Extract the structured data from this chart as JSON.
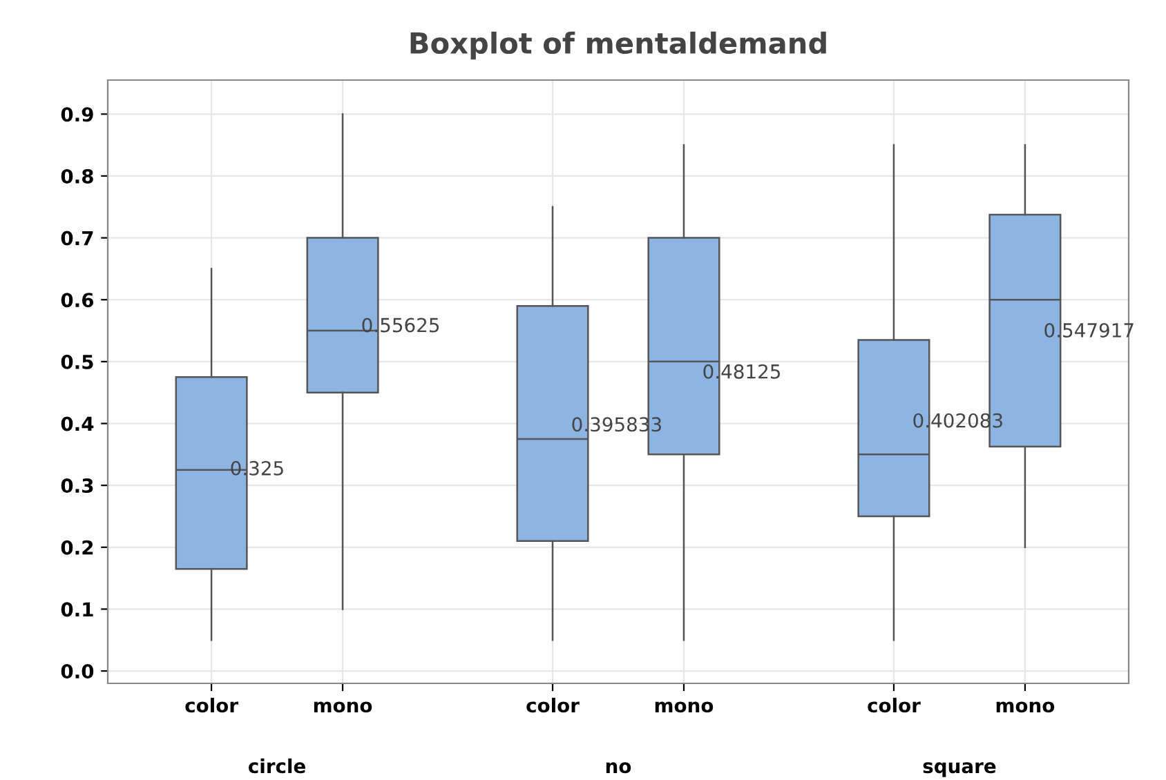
{
  "chart_data": {
    "type": "box",
    "title": "Boxplot of mentaldemand",
    "categories": [
      "color",
      "mono",
      "color",
      "mono",
      "color",
      "mono"
    ],
    "annotations": [
      "circle",
      "no",
      "square"
    ],
    "boxes": [
      {
        "low": 0.05,
        "q1": 0.165,
        "median": 0.325,
        "q3": 0.475,
        "high": 0.65
      },
      {
        "low": 0.1,
        "q1": 0.45,
        "median": 0.55,
        "q3": 0.7,
        "high": 0.9
      },
      {
        "low": 0.05,
        "q1": 0.21,
        "median": 0.375,
        "q3": 0.59,
        "high": 0.75
      },
      {
        "low": 0.05,
        "q1": 0.35,
        "median": 0.5,
        "q3": 0.7,
        "high": 0.85
      },
      {
        "low": 0.05,
        "q1": 0.25,
        "median": 0.35,
        "q3": 0.535,
        "high": 0.85
      },
      {
        "low": 0.2,
        "q1": 0.3625,
        "median": 0.6,
        "q3": 0.7375,
        "high": 0.85
      }
    ],
    "value_labels": [
      "0.325",
      "0.55625",
      "0.395833",
      "0.48125",
      "0.402083",
      "0.547917"
    ],
    "color": "#8db4e2",
    "grid": true,
    "ylim": [
      -0.02,
      0.955
    ],
    "yticks": [
      {
        "value": 0,
        "label": "0.0"
      },
      0.1,
      0.2,
      0.3,
      0.4,
      0.5,
      0.6,
      0.7,
      0.8,
      0.9
    ]
  }
}
